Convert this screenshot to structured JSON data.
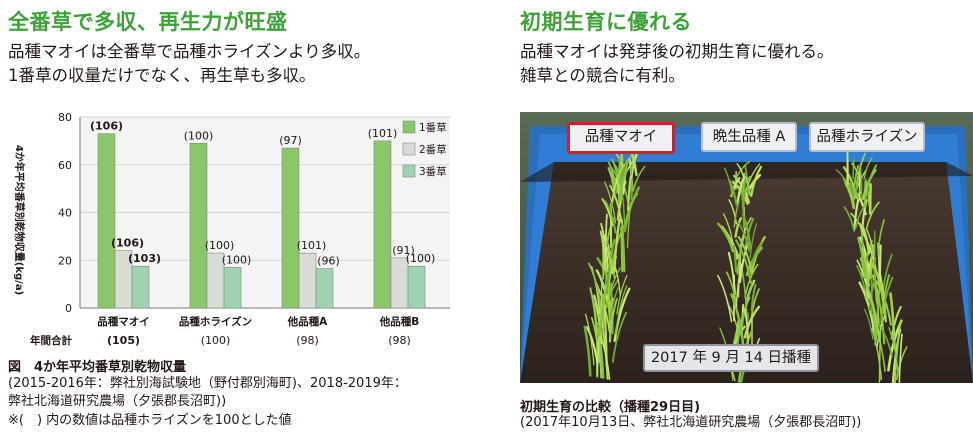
{
  "left": {
    "heading": "全番草で多収、再生力が旺盛",
    "lead_1": "品種マオイは全番草で品種ホライズンより多収。",
    "lead_2": "1番草の収量だけでなく、再生草も多収。",
    "caption_title": "図　4か年平均番草別乾物収量",
    "caption_1": "(2015-2016年：弊社別海試験地（野付郡別海町)、2018-2019年：",
    "caption_2": "弊社北海道研究農場（夕張郡長沼町))",
    "caption_3": "※(　) 内の数値は品種ホライズンを100とした値"
  },
  "right": {
    "heading": "初期生育に優れる",
    "lead_1": "品種マオイは発芽後の初期生育に優れる。",
    "lead_2": "雑草との競合に有利。",
    "photo_labels": [
      "品種マオイ",
      "晩生品種 A",
      "品種ホライズン"
    ],
    "photo_date": "2017 年 9 月 14 日播種",
    "caption_title": "初期生育の比較（播種29日目)",
    "caption_1": "(2017年10月13日、弊社北海道研究農場（夕張郡長沼町))"
  },
  "colors": {
    "accent": "#3ea23a",
    "series": [
      "#8cc66a",
      "#d9dcd6",
      "#9fd2b0"
    ],
    "highlight": "#d0202e"
  },
  "chart_data": {
    "type": "bar",
    "ylabel": "4か年平均番草別乾物収量(kg/a)",
    "ylim": [
      0,
      80
    ],
    "yticks": [
      0,
      20,
      40,
      60,
      80
    ],
    "categories": [
      "品種マオイ",
      "品種ホライズン",
      "他品種A",
      "他品種B"
    ],
    "series": [
      {
        "name": "1番草",
        "values": [
          73,
          69,
          67,
          70
        ],
        "labels": [
          "(106)",
          "(100)",
          "(97)",
          "(101)"
        ],
        "bold": [
          true,
          false,
          false,
          false
        ]
      },
      {
        "name": "2番草",
        "values": [
          24,
          23,
          23,
          21
        ],
        "labels": [
          "(106)",
          "(100)",
          "(101)",
          "(91)"
        ],
        "bold": [
          true,
          false,
          false,
          false
        ]
      },
      {
        "name": "3番草",
        "values": [
          17.5,
          17,
          16.5,
          17.5
        ],
        "labels": [
          "(103)",
          "(100)",
          "(96)",
          "(100)"
        ],
        "bold": [
          true,
          false,
          false,
          false
        ]
      }
    ],
    "total_label": "年間合計",
    "totals": [
      "(105)",
      "(100)",
      "(98)",
      "(98)"
    ],
    "totals_bold": [
      true,
      false,
      false,
      false
    ]
  }
}
